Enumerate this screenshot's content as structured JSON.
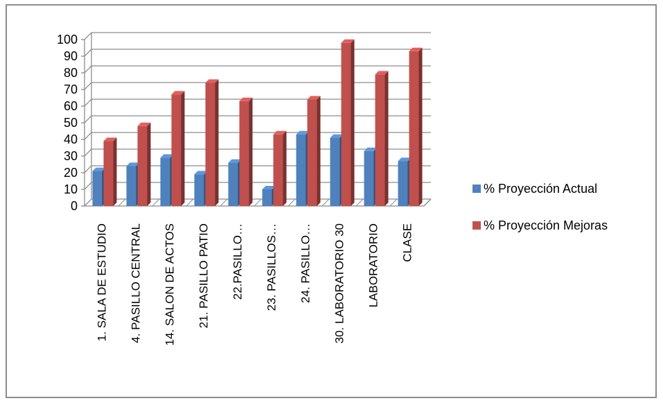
{
  "chart_data": {
    "type": "bar",
    "title": "",
    "xlabel": "",
    "ylabel": "",
    "ylim": [
      0,
      100
    ],
    "yticks": [
      0,
      10,
      20,
      30,
      40,
      50,
      60,
      70,
      80,
      90,
      100
    ],
    "grid": true,
    "three_d": true,
    "legend_position": "right",
    "categories": [
      "1. SALA DE ESTUDIO",
      "4. PASILLO CENTRAL",
      "14. SALON DE ACTOS",
      "21. PASILLO PATIO",
      "22.PASILLO…",
      "23. PASILLOS…",
      "24. PASILLO…",
      "30. LABORATORIO 30",
      "LABORATORIO",
      "CLASE"
    ],
    "series": [
      {
        "name": "% Proyección Actual",
        "color": "#4f81bd",
        "values": [
          21,
          24,
          29,
          19,
          26,
          10,
          43,
          41,
          33,
          27
        ]
      },
      {
        "name": "% Proyección Mejoras",
        "color": "#c0504d",
        "values": [
          39,
          48,
          67,
          74,
          63,
          43,
          64,
          98,
          79,
          93
        ]
      }
    ]
  }
}
